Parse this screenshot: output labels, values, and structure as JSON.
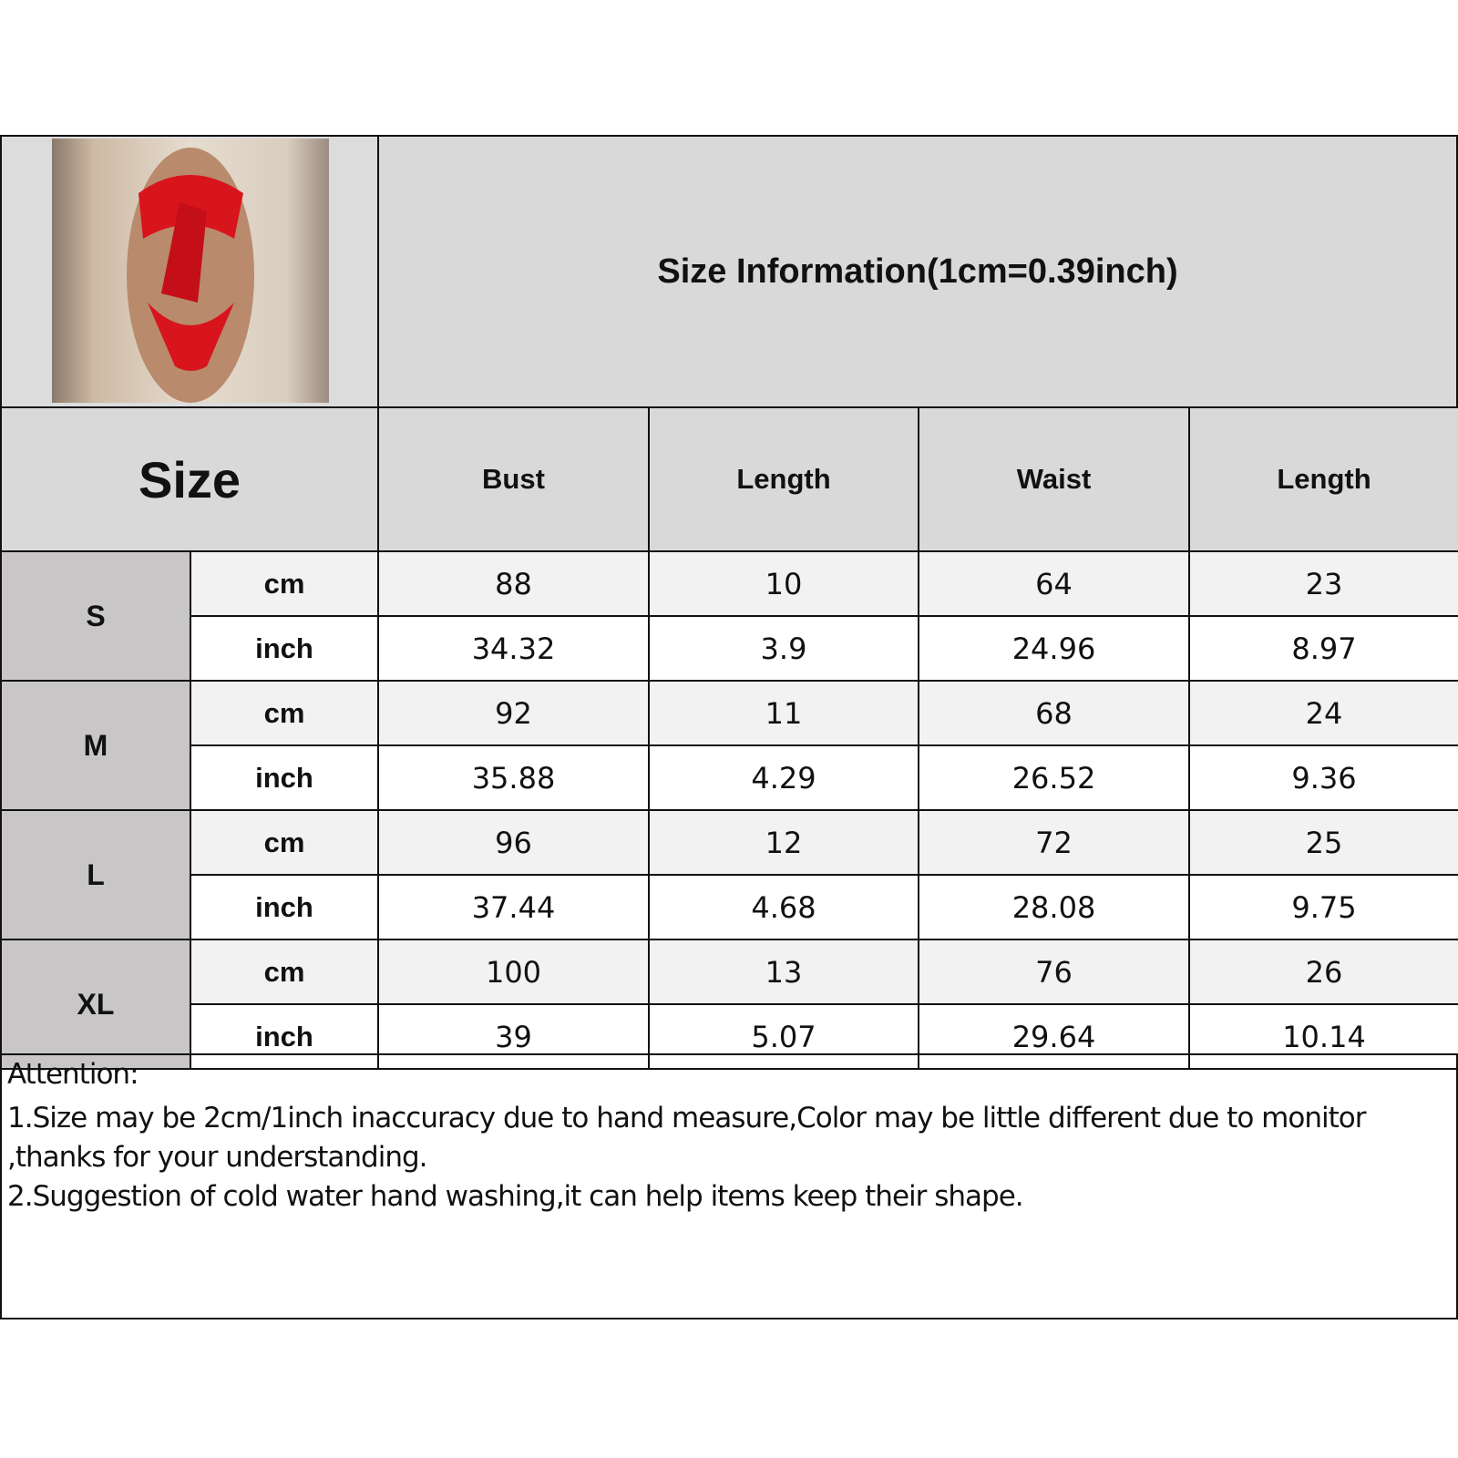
{
  "title": "Size Information(1cm=0.39inch)",
  "size_header": "Size",
  "columns": [
    "Bust",
    "Length",
    "Waist",
    "Length"
  ],
  "units": {
    "cm": "cm",
    "inch": "inch"
  },
  "sizes": [
    {
      "label": "S",
      "cm": [
        "88",
        "10",
        "64",
        "23"
      ],
      "inch": [
        "34.32",
        "3.9",
        "24.96",
        "8.97"
      ]
    },
    {
      "label": "M",
      "cm": [
        "92",
        "11",
        "68",
        "24"
      ],
      "inch": [
        "35.88",
        "4.29",
        "26.52",
        "9.36"
      ]
    },
    {
      "label": "L",
      "cm": [
        "96",
        "12",
        "72",
        "25"
      ],
      "inch": [
        "37.44",
        "4.68",
        "28.08",
        "9.75"
      ]
    },
    {
      "label": "XL",
      "cm": [
        "100",
        "13",
        "76",
        "26"
      ],
      "inch": [
        "39",
        "5.07",
        "29.64",
        "10.14"
      ]
    }
  ],
  "attention": {
    "heading": "Attention:",
    "lines": [
      "1.Size may be 2cm/1inch inaccuracy due to hand measure,Color may be little different due to monitor",
      ",thanks for your understanding.",
      "2.Suggestion of cold water hand washing,it can help items keep their shape."
    ]
  },
  "colors": {
    "header": "#d9d9d9",
    "size_cell": "#c8c6c6",
    "cm_row": "#f2f2f2",
    "product": "#d8141c"
  }
}
